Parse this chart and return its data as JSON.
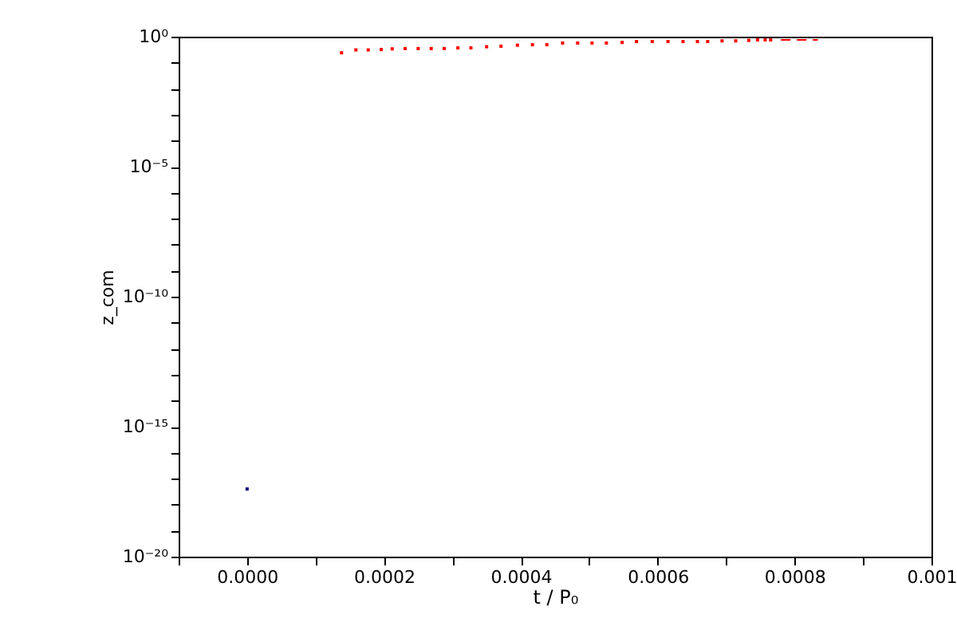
{
  "chart_data": {
    "type": "scatter",
    "xlabel": "t / P₀",
    "ylabel": "z_com",
    "log": "y",
    "grid": false,
    "xlim": [
      -0.0001,
      0.001
    ],
    "ylim": [
      1e-20,
      1
    ],
    "xticks": [
      {
        "value": -0.0001,
        "label": null
      },
      {
        "value": 0,
        "label": "0.0000"
      },
      {
        "value": 0.0001,
        "label": null
      },
      {
        "value": 0.0002,
        "label": "0.0002"
      },
      {
        "value": 0.0003,
        "label": null
      },
      {
        "value": 0.0004,
        "label": "0.0004"
      },
      {
        "value": 0.0005,
        "label": null
      },
      {
        "value": 0.0006,
        "label": "0.0006"
      },
      {
        "value": 0.0007,
        "label": null
      },
      {
        "value": 0.0008,
        "label": "0.0008"
      },
      {
        "value": 0.0009,
        "label": null
      },
      0.001
    ],
    "yticks": [
      {
        "value": 1,
        "label": "10⁰"
      },
      {
        "value": 0.1,
        "label": null
      },
      {
        "value": 0.01,
        "label": null
      },
      {
        "value": 0.001,
        "label": null
      },
      {
        "value": 0.0001,
        "label": null
      },
      {
        "value": 1e-05,
        "label": "10⁻⁵"
      },
      {
        "value": 1e-06,
        "label": null
      },
      {
        "value": 1e-07,
        "label": null
      },
      {
        "value": 1e-08,
        "label": null
      },
      {
        "value": 1e-09,
        "label": null
      },
      {
        "value": 1e-10,
        "label": "10⁻¹⁰"
      },
      {
        "value": 1e-11,
        "label": null
      },
      {
        "value": 1e-12,
        "label": null
      },
      {
        "value": 1e-13,
        "label": null
      },
      {
        "value": 1e-14,
        "label": null
      },
      {
        "value": 1e-15,
        "label": "10⁻¹⁵"
      },
      {
        "value": 1e-16,
        "label": null
      },
      {
        "value": 1e-17,
        "label": null
      },
      {
        "value": 1e-18,
        "label": null
      },
      {
        "value": 1e-19,
        "label": null
      },
      {
        "value": 1e-20,
        "label": "10⁻²⁰"
      }
    ],
    "series": [
      {
        "marker": "square",
        "color": "#ff0000",
        "x": [
          0.000138,
          0.000159,
          0.000177,
          0.000196,
          0.000212,
          0.000231,
          0.00025,
          0.000269,
          0.000288,
          0.000308,
          0.000327,
          0.00035,
          0.000371,
          0.000395,
          0.000417,
          0.000438,
          0.000461,
          0.000483,
          0.000504,
          0.000525,
          0.000548,
          0.000569,
          0.000592,
          0.000615,
          0.000637,
          0.000658,
          0.000673,
          0.000694,
          0.000714,
          0.000733,
          0.000746,
          0.000757,
          0.000765
        ],
        "values": [
          0.24,
          0.31,
          0.31,
          0.32,
          0.34,
          0.35,
          0.35,
          0.35,
          0.35,
          0.37,
          0.37,
          0.41,
          0.43,
          0.47,
          0.49,
          0.49,
          0.57,
          0.57,
          0.57,
          0.57,
          0.6,
          0.65,
          0.65,
          0.65,
          0.65,
          0.65,
          0.65,
          0.69,
          0.69,
          0.72,
          0.75,
          0.75,
          0.75
        ]
      },
      {
        "type": "line",
        "line_style": "dashed",
        "color": "#ff0000",
        "x": [
          0.00078,
          0.000834
        ],
        "values": [
          0.75,
          0.75
        ]
      },
      {
        "marker": "square",
        "color": "#000080",
        "x": [
          0
        ],
        "values": [
          4e-18
        ]
      }
    ]
  }
}
